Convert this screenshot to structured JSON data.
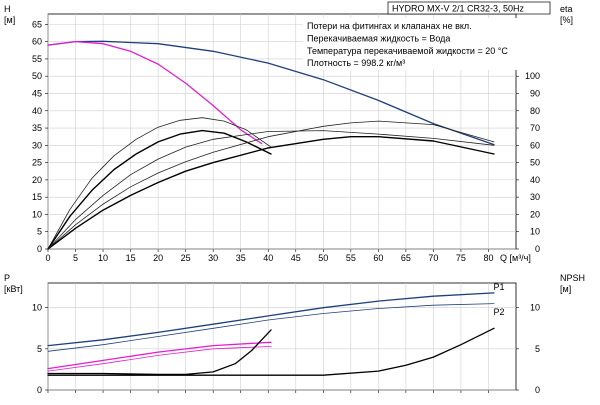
{
  "chart_data": [
    {
      "type": "line",
      "title": "HYDRO MX-V 2/1 CR32-3, 50Hz",
      "notes": [
        "Потери на фитингах и клапанах не вкл.",
        "Перекачиваемая жидкость = Вода",
        "Температура перекачиваемой жидкости = 20 °C",
        "Плотность = 998.2 кг/м³"
      ],
      "xlabel": "Q [м³/ч]",
      "xlim": [
        0,
        85
      ],
      "x_ticks": [
        0,
        5,
        10,
        15,
        20,
        25,
        30,
        35,
        40,
        45,
        50,
        55,
        60,
        65,
        70,
        75,
        80
      ],
      "y_left": {
        "label_top": "H",
        "label_unit": "[м]",
        "lim": [
          0,
          68
        ],
        "ticks": [
          0,
          5,
          10,
          15,
          20,
          25,
          30,
          35,
          40,
          45,
          50,
          55,
          60,
          65
        ]
      },
      "y_right": {
        "label_top": "eta",
        "label_unit": "[%]",
        "lim": [
          0,
          136
        ],
        "ticks": [
          0,
          10,
          20,
          30,
          40,
          50,
          60,
          70,
          80,
          90,
          100
        ]
      },
      "grid": true,
      "series": [
        {
          "axis": "left",
          "color": "#1f3f7a",
          "width": 1.3,
          "x": [
            0,
            5,
            10,
            20,
            30,
            40,
            50,
            60,
            70,
            81
          ],
          "y": [
            59,
            60,
            60.1,
            59.4,
            57.2,
            53.8,
            49,
            43,
            36.3,
            30.2
          ]
        },
        {
          "axis": "left",
          "color": "#e020d0",
          "width": 1.3,
          "x": [
            0,
            5,
            10,
            15,
            20,
            25,
            30,
            35,
            38.8
          ],
          "y": [
            59,
            60,
            59.4,
            57.2,
            53.5,
            48,
            41.5,
            34.5,
            30.5
          ]
        },
        {
          "axis": "right",
          "color": "#222222",
          "width": 0.8,
          "x": [
            0,
            4,
            8,
            12,
            16,
            20,
            24,
            28,
            32,
            36,
            40.5
          ],
          "y": [
            0,
            23,
            41,
            54,
            63.5,
            70.5,
            74.5,
            76,
            74,
            69,
            59
          ]
        },
        {
          "axis": "right",
          "color": "#000000",
          "width": 1.4,
          "x": [
            0,
            4,
            8,
            12,
            16,
            20,
            24,
            28,
            32,
            36,
            40.5
          ],
          "y": [
            0,
            19,
            34,
            46,
            55,
            62,
            66.5,
            68.5,
            67,
            62,
            55
          ]
        },
        {
          "axis": "right",
          "color": "#222222",
          "width": 0.8,
          "x": [
            0,
            5,
            10,
            15,
            20,
            25,
            30,
            40,
            50,
            55,
            60,
            70,
            81
          ],
          "y": [
            0,
            14,
            26,
            36,
            44,
            50.5,
            56,
            65,
            71,
            73,
            74,
            72,
            62
          ]
        },
        {
          "axis": "right",
          "color": "#000000",
          "width": 1.4,
          "x": [
            0,
            5,
            10,
            15,
            20,
            25,
            30,
            40,
            50,
            55,
            60,
            70,
            81
          ],
          "y": [
            0,
            12,
            22.5,
            31,
            38.5,
            45,
            50,
            58.5,
            63.5,
            65,
            65,
            62.5,
            55
          ]
        },
        {
          "axis": "right",
          "color": "#222222",
          "width": 0.8,
          "x": [
            0,
            5,
            10,
            15,
            20,
            25,
            30,
            40,
            50,
            60,
            70,
            81
          ],
          "y": [
            0,
            17,
            31,
            43,
            52,
            59,
            63.5,
            68,
            68.5,
            66.5,
            64,
            60
          ]
        }
      ]
    },
    {
      "type": "line",
      "xlim": [
        0,
        85
      ],
      "x_ticks": [
        0,
        5,
        10,
        15,
        20,
        25,
        30,
        35,
        40,
        45,
        50,
        55,
        60,
        65,
        70,
        75,
        80
      ],
      "y_left": {
        "label_top": "P",
        "label_unit": "[кВт]",
        "lim": [
          0,
          13
        ],
        "ticks": [
          0,
          5,
          10
        ]
      },
      "y_right": {
        "label_top": "NPSH",
        "label_unit": "[м]",
        "lim": [
          0,
          13
        ],
        "ticks": [
          0,
          5,
          10
        ]
      },
      "grid": true,
      "series": [
        {
          "name": "P1",
          "axis": "left",
          "color": "#1f3f7a",
          "width": 1.3,
          "x": [
            0,
            10,
            20,
            30,
            40,
            50,
            60,
            70,
            81
          ],
          "y": [
            5.4,
            6.1,
            7,
            8,
            9,
            10,
            10.8,
            11.4,
            11.8
          ]
        },
        {
          "name": "P2",
          "axis": "left",
          "color": "#1f3f7a",
          "width": 0.8,
          "x": [
            0,
            10,
            20,
            30,
            40,
            50,
            60,
            70,
            81
          ],
          "y": [
            4.7,
            5.5,
            6.5,
            7.5,
            8.5,
            9.3,
            9.9,
            10.3,
            10.5
          ]
        },
        {
          "axis": "left",
          "color": "#e020d0",
          "width": 1.3,
          "x": [
            0,
            10,
            20,
            30,
            40.5
          ],
          "y": [
            2.6,
            3.6,
            4.6,
            5.4,
            5.8
          ]
        },
        {
          "axis": "left",
          "color": "#e020d0",
          "width": 0.8,
          "x": [
            0,
            10,
            20,
            30,
            40.5
          ],
          "y": [
            2.3,
            3.2,
            4.2,
            5,
            5.3
          ]
        },
        {
          "axis": "right",
          "color": "#000000",
          "width": 1.3,
          "x": [
            0,
            10,
            20,
            25,
            30,
            34,
            37,
            40.5
          ],
          "y": [
            2,
            2,
            1.9,
            1.9,
            2.2,
            3.2,
            4.8,
            7.3
          ]
        },
        {
          "axis": "right",
          "color": "#000000",
          "width": 1.3,
          "x": [
            0,
            10,
            20,
            30,
            40,
            50,
            60,
            65,
            70,
            75,
            81
          ],
          "y": [
            1.8,
            1.8,
            1.8,
            1.8,
            1.8,
            1.8,
            2.3,
            3,
            4,
            5.5,
            7.5
          ]
        }
      ],
      "series_labels": [
        {
          "text": "P1",
          "at_x": 80,
          "at_y": 12.5
        },
        {
          "text": "P2",
          "at_x": 80,
          "at_y": 9.5
        }
      ]
    }
  ]
}
